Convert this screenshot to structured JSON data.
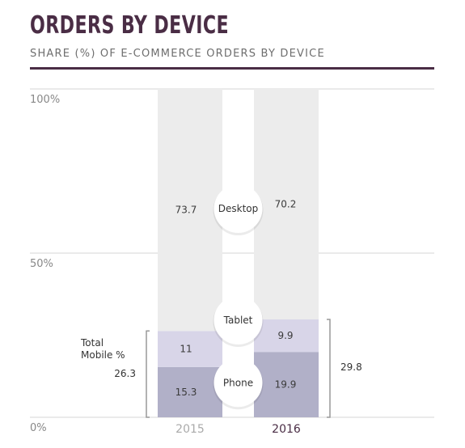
{
  "title": "ORDERS BY DEVICE",
  "subtitle": "SHARE (%) OF E-COMMERCE ORDERS BY DEVICE",
  "colors": {
    "desktop": "#ececec",
    "tablet": "#d8d5e8",
    "phone": "#b1b0c8",
    "title": "#4a2d45",
    "grid": "#d4d4d4",
    "year_2015": "#aaaaaa",
    "year_2016": "#4a2d45"
  },
  "mobile_annotation": {
    "label_line1": "Total",
    "label_line2": "Mobile %"
  },
  "chart_data": {
    "type": "bar",
    "stacked": true,
    "categories": [
      "2015",
      "2016"
    ],
    "series": [
      {
        "name": "Phone",
        "values": [
          15.3,
          19.9
        ]
      },
      {
        "name": "Tablet",
        "values": [
          11,
          9.9
        ]
      },
      {
        "name": "Desktop",
        "values": [
          73.7,
          70.2
        ]
      }
    ],
    "value_labels": {
      "Phone": [
        "15.3",
        "19.9"
      ],
      "Tablet": [
        "11",
        "9.9"
      ],
      "Desktop": [
        "73.7",
        "70.2"
      ]
    },
    "mobile_totals": [
      26.3,
      29.8
    ],
    "mobile_total_labels": [
      "26.3",
      "29.8"
    ],
    "yticks": [
      {
        "value": 100,
        "label": "100%"
      },
      {
        "value": 50,
        "label": "50%"
      },
      {
        "value": 0,
        "label": "0%"
      }
    ],
    "ylim": [
      0,
      100
    ],
    "grid": true,
    "legend": "inline labels between bars"
  }
}
